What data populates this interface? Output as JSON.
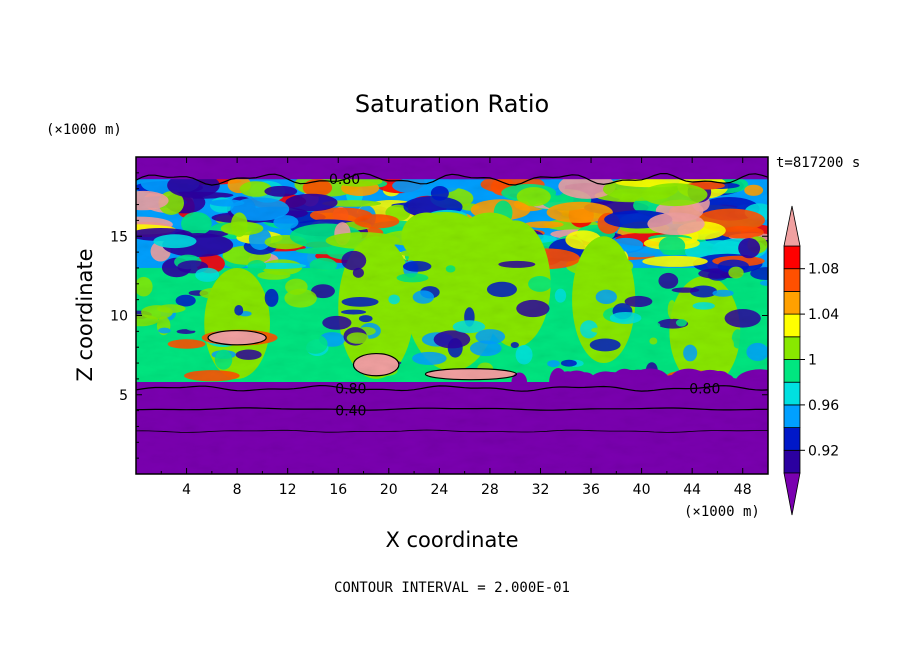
{
  "chart_data": {
    "type": "heatmap",
    "title": "Saturation Ratio",
    "xlabel": "X coordinate",
    "ylabel": "Z coordinate",
    "x_units": "(×1000 m)",
    "y_units": "(×1000 m)",
    "time_label": "t=817200 s",
    "footer": "CONTOUR INTERVAL = 2.000E-01",
    "xlim": [
      0,
      50
    ],
    "ylim": [
      0,
      20
    ],
    "x_ticks": [
      4,
      8,
      12,
      16,
      20,
      24,
      28,
      32,
      36,
      40,
      44,
      48
    ],
    "y_ticks": [
      5,
      10,
      15
    ],
    "contour_labels": [
      {
        "text": "0.80",
        "x": 16.5,
        "z": 18.6
      },
      {
        "text": "0.80",
        "x": 17,
        "z": 5.4
      },
      {
        "text": "0.80",
        "x": 45,
        "z": 5.4
      },
      {
        "text": "0.40",
        "x": 17,
        "z": 4.0
      }
    ],
    "colorbar": {
      "levels": [
        0.9,
        0.92,
        0.94,
        0.96,
        0.98,
        1.0,
        1.02,
        1.04,
        1.06,
        1.08,
        1.1
      ],
      "tick_labels": [
        "0.92",
        "0.96",
        "1",
        "1.04",
        "1.08"
      ],
      "tick_values": [
        0.92,
        0.96,
        1.0,
        1.04,
        1.08
      ],
      "colors": [
        "#6a00a8",
        "#2b00a0",
        "#0018c8",
        "#00a0ff",
        "#00e0e0",
        "#00e680",
        "#88e800",
        "#ffff00",
        "#ffa000",
        "#ff5000",
        "#ff0000",
        "#f0a0a0"
      ],
      "under_color": "#7a00b0",
      "over_color": "#f0a0a0"
    }
  }
}
